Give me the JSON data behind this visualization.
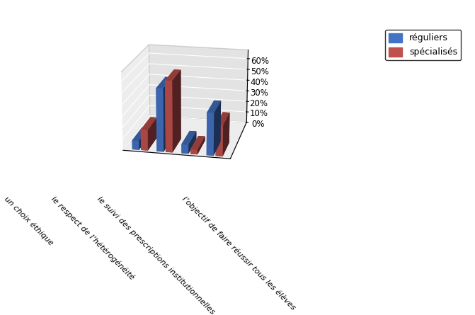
{
  "categories": [
    "un choix éthique",
    "le respect de l’hétérogénéité",
    "le suivi des prescriptions institutionnelles",
    "l’objectif de faire réussir tous les élèves"
  ],
  "reguliers": [
    8,
    55,
    8,
    37
  ],
  "specialises": [
    18,
    62,
    4,
    27
  ],
  "color_reguliers": "#4472C4",
  "color_specialises": "#C0504D",
  "ytick_labels": [
    "0%",
    "10%",
    "20%",
    "30%",
    "40%",
    "50%",
    "60%"
  ],
  "ytick_values": [
    0,
    10,
    20,
    30,
    40,
    50,
    60
  ],
  "ylim": [
    0,
    68
  ],
  "legend_reguliers": "réguliers",
  "legend_specialises": "spécialisés",
  "background_color": "#DCDCDC",
  "floor_color": "#C8C8C8",
  "bar_width": 0.28,
  "bar_depth": 0.45,
  "elev": 18,
  "azim": -78
}
